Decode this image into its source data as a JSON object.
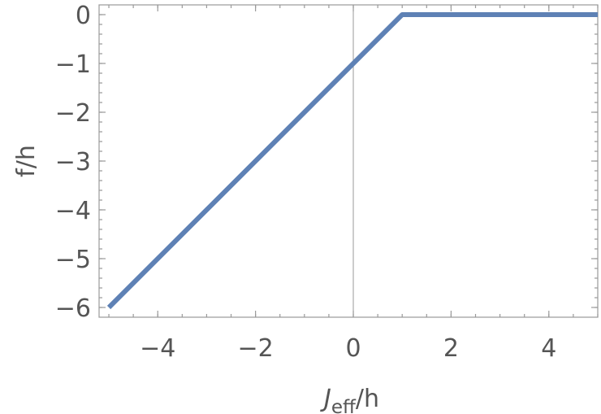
{
  "chart_data": {
    "type": "line",
    "xlabel": {
      "main": "J",
      "sub": "eff",
      "rest": "/h"
    },
    "ylabel": "f/h",
    "xlim": [
      -5.2,
      5
    ],
    "ylim": [
      -6.2,
      0.2
    ],
    "grid": false,
    "x_ticks": [
      -4,
      -2,
      0,
      2,
      4
    ],
    "y_ticks": [
      0,
      -1,
      -2,
      -3,
      -4,
      -5,
      -6
    ],
    "x_tick_labels": [
      "−4",
      "−2",
      "0",
      "2",
      "4"
    ],
    "y_tick_labels": [
      "0",
      "−1",
      "−2",
      "−3",
      "−4",
      "−5",
      "−6"
    ],
    "series": [
      {
        "color": "#5e81b5",
        "x": [
          -5,
          1,
          5
        ],
        "y": [
          -6,
          0,
          0
        ]
      }
    ]
  }
}
